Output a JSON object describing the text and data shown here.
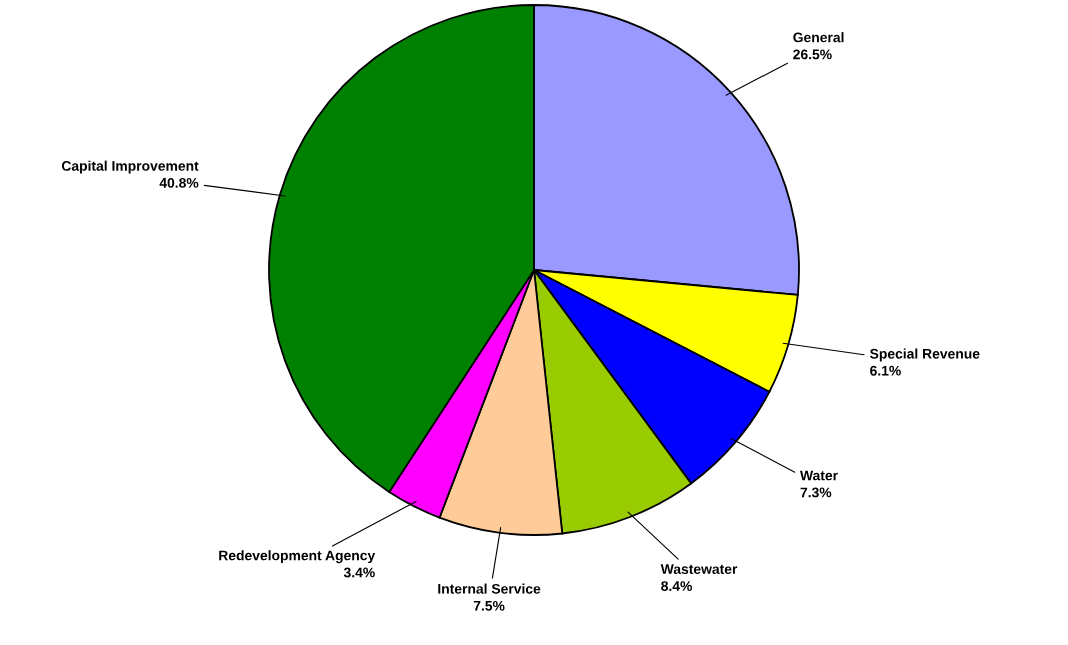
{
  "chart_data": {
    "type": "pie",
    "categories": [
      "General",
      "Special Revenue",
      "Water",
      "Wastewater",
      "Internal Service",
      "Redevelopment Agency",
      "Capital Improvement"
    ],
    "values": [
      26.5,
      6.1,
      7.3,
      8.4,
      7.5,
      3.4,
      40.8
    ],
    "colors": [
      "#9999ff",
      "#ffff00",
      "#0000ff",
      "#99cc00",
      "#ffcc99",
      "#ff00ff",
      "#008000"
    ],
    "value_labels": [
      "26.5%",
      "6.1%",
      "7.3%",
      "8.4%",
      "7.5%",
      "3.4%",
      "40.8%"
    ]
  }
}
